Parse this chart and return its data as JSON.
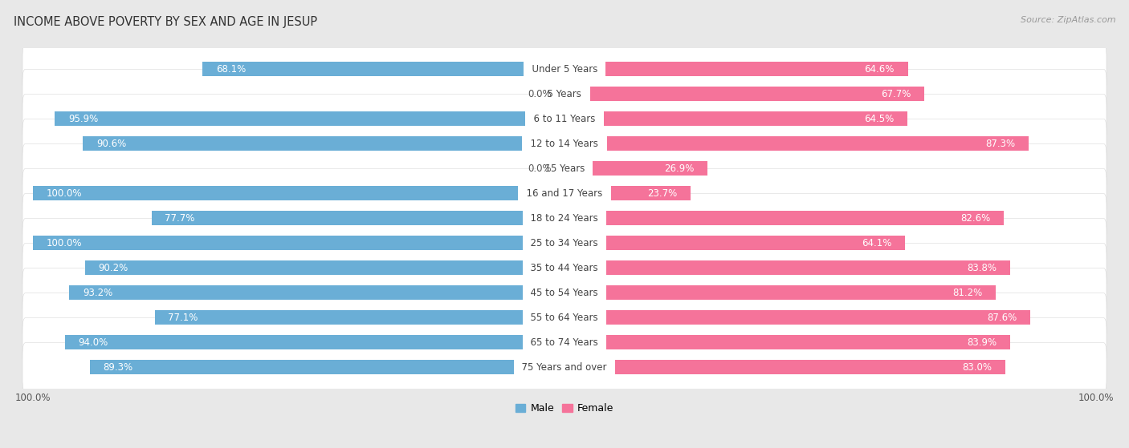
{
  "title": "INCOME ABOVE POVERTY BY SEX AND AGE IN JESUP",
  "source": "Source: ZipAtlas.com",
  "categories": [
    "Under 5 Years",
    "5 Years",
    "6 to 11 Years",
    "12 to 14 Years",
    "15 Years",
    "16 and 17 Years",
    "18 to 24 Years",
    "25 to 34 Years",
    "35 to 44 Years",
    "45 to 54 Years",
    "55 to 64 Years",
    "65 to 74 Years",
    "75 Years and over"
  ],
  "male_values": [
    68.1,
    0.0,
    95.9,
    90.6,
    0.0,
    100.0,
    77.7,
    100.0,
    90.2,
    93.2,
    77.1,
    94.0,
    89.3
  ],
  "female_values": [
    64.6,
    67.7,
    64.5,
    87.3,
    26.9,
    23.7,
    82.6,
    64.1,
    83.8,
    81.2,
    87.6,
    83.9,
    83.0
  ],
  "male_color": "#6aaed6",
  "male_color_light": "#b8d9ee",
  "female_color": "#f5739a",
  "female_color_light": "#f9b8ce",
  "male_label": "Male",
  "female_label": "Female",
  "axis_max": 100.0,
  "bg_color": "#e8e8e8",
  "row_bg_color": "#ffffff",
  "title_fontsize": 10.5,
  "label_fontsize": 8.5,
  "value_fontsize": 8.5,
  "tick_fontsize": 8.5,
  "source_fontsize": 8,
  "legend_fontsize": 9
}
